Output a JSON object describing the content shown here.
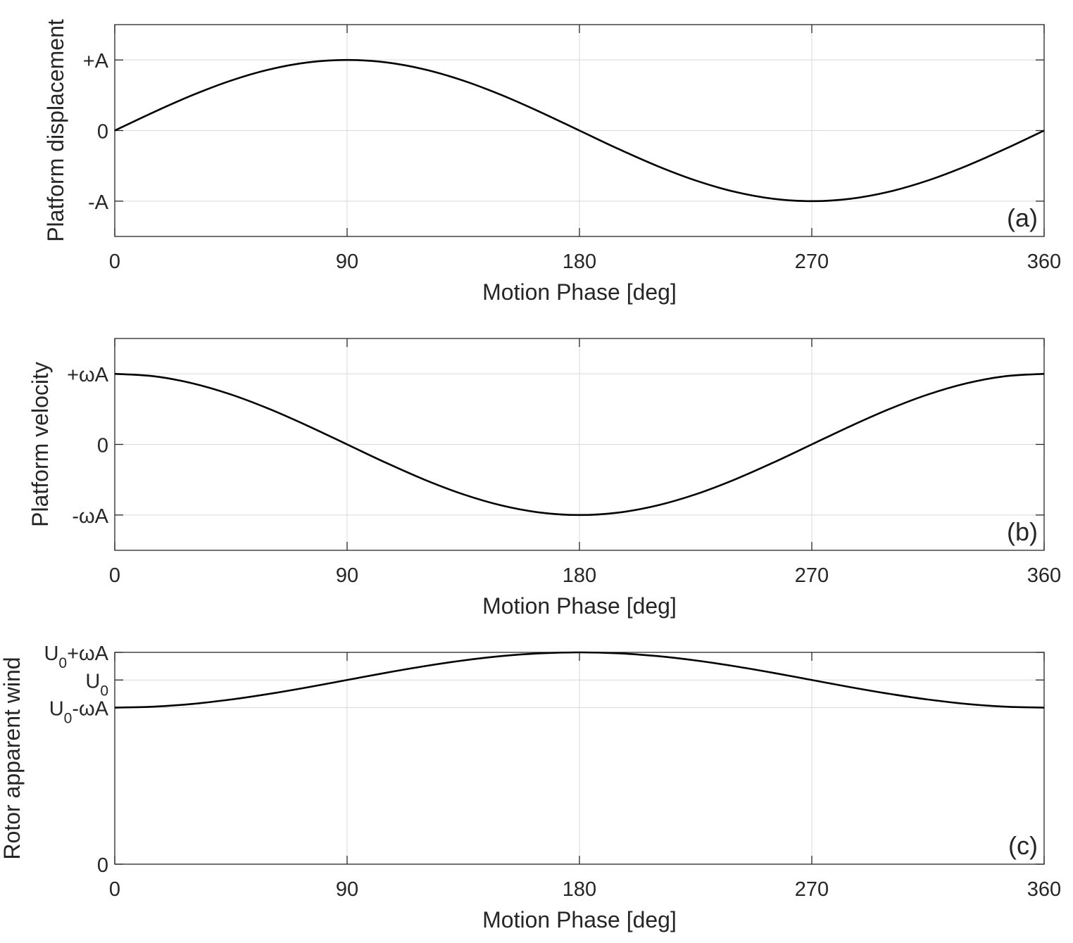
{
  "chart_data": [
    {
      "type": "line",
      "panel_tag": "(a)",
      "xlabel": "Motion Phase [deg]",
      "ylabel": "Platform displacement",
      "xlim": [
        0,
        360
      ],
      "ylim": [
        -1.5,
        1.5
      ],
      "x_ticks": [
        {
          "value": 0,
          "label": "0"
        },
        {
          "value": 90,
          "label": "90"
        },
        {
          "value": 180,
          "label": "180"
        },
        {
          "value": 270,
          "label": "270"
        },
        {
          "value": 360,
          "label": "360"
        }
      ],
      "y_ticks": [
        {
          "value": -1,
          "parts": [
            {
              "t": "-A"
            }
          ]
        },
        {
          "value": 0,
          "parts": [
            {
              "t": "0"
            }
          ]
        },
        {
          "value": 1,
          "parts": [
            {
              "t": "+A"
            }
          ]
        }
      ],
      "grid": true,
      "series": [
        {
          "x": [
            0,
            15,
            30,
            45,
            60,
            75,
            90,
            105,
            120,
            135,
            150,
            165,
            180,
            195,
            210,
            225,
            240,
            255,
            270,
            285,
            300,
            315,
            330,
            345,
            360
          ],
          "y": [
            0,
            0.259,
            0.5,
            0.707,
            0.866,
            0.966,
            1,
            0.966,
            0.866,
            0.707,
            0.5,
            0.259,
            0,
            -0.259,
            -0.5,
            -0.707,
            -0.866,
            -0.966,
            -1,
            -0.966,
            -0.866,
            -0.707,
            -0.5,
            -0.259,
            0
          ]
        }
      ]
    },
    {
      "type": "line",
      "panel_tag": "(b)",
      "xlabel": "Motion Phase [deg]",
      "ylabel": "Platform velocity",
      "xlim": [
        0,
        360
      ],
      "ylim": [
        -1.5,
        1.5
      ],
      "x_ticks": [
        {
          "value": 0,
          "label": "0"
        },
        {
          "value": 90,
          "label": "90"
        },
        {
          "value": 180,
          "label": "180"
        },
        {
          "value": 270,
          "label": "270"
        },
        {
          "value": 360,
          "label": "360"
        }
      ],
      "y_ticks": [
        {
          "value": -1,
          "parts": [
            {
              "t": "-ωA"
            }
          ]
        },
        {
          "value": 0,
          "parts": [
            {
              "t": "0"
            }
          ]
        },
        {
          "value": 1,
          "parts": [
            {
              "t": "+ωA"
            }
          ]
        }
      ],
      "grid": true,
      "series": [
        {
          "x": [
            0,
            15,
            30,
            45,
            60,
            75,
            90,
            105,
            120,
            135,
            150,
            165,
            180,
            195,
            210,
            225,
            240,
            255,
            270,
            285,
            300,
            315,
            330,
            345,
            360
          ],
          "y": [
            1,
            0.966,
            0.866,
            0.707,
            0.5,
            0.259,
            0,
            -0.259,
            -0.5,
            -0.707,
            -0.866,
            -0.966,
            -1,
            -0.966,
            -0.866,
            -0.707,
            -0.5,
            -0.259,
            0,
            0.259,
            0.5,
            0.707,
            0.866,
            0.966,
            1
          ]
        }
      ]
    },
    {
      "type": "line",
      "panel_tag": "(c)",
      "xlabel": "Motion Phase [deg]",
      "ylabel": "Rotor apparent wind",
      "xlim": [
        0,
        360
      ],
      "ylim": [
        0,
        1.15
      ],
      "x_ticks": [
        {
          "value": 0,
          "label": "0"
        },
        {
          "value": 90,
          "label": "90"
        },
        {
          "value": 180,
          "label": "180"
        },
        {
          "value": 270,
          "label": "270"
        },
        {
          "value": 360,
          "label": "360"
        }
      ],
      "y_ticks": [
        {
          "value": 0,
          "parts": [
            {
              "t": "0"
            }
          ]
        },
        {
          "value": 0.85,
          "parts": [
            {
              "t": "U"
            },
            {
              "t": "0",
              "sub": true
            },
            {
              "t": "-ωA"
            }
          ]
        },
        {
          "value": 1.0,
          "parts": [
            {
              "t": "U"
            },
            {
              "t": "0",
              "sub": true
            }
          ]
        },
        {
          "value": 1.15,
          "parts": [
            {
              "t": "U"
            },
            {
              "t": "0",
              "sub": true
            },
            {
              "t": "+ωA"
            }
          ]
        }
      ],
      "grid": true,
      "series": [
        {
          "x": [
            0,
            15,
            30,
            45,
            60,
            75,
            90,
            105,
            120,
            135,
            150,
            165,
            180,
            195,
            210,
            225,
            240,
            255,
            270,
            285,
            300,
            315,
            330,
            345,
            360
          ],
          "y": [
            0.85,
            0.855,
            0.87,
            0.894,
            0.925,
            0.961,
            1.0,
            1.039,
            1.075,
            1.106,
            1.13,
            1.145,
            1.15,
            1.145,
            1.13,
            1.106,
            1.075,
            1.039,
            1.0,
            0.961,
            0.925,
            0.894,
            0.87,
            0.855,
            0.85
          ]
        }
      ]
    }
  ]
}
